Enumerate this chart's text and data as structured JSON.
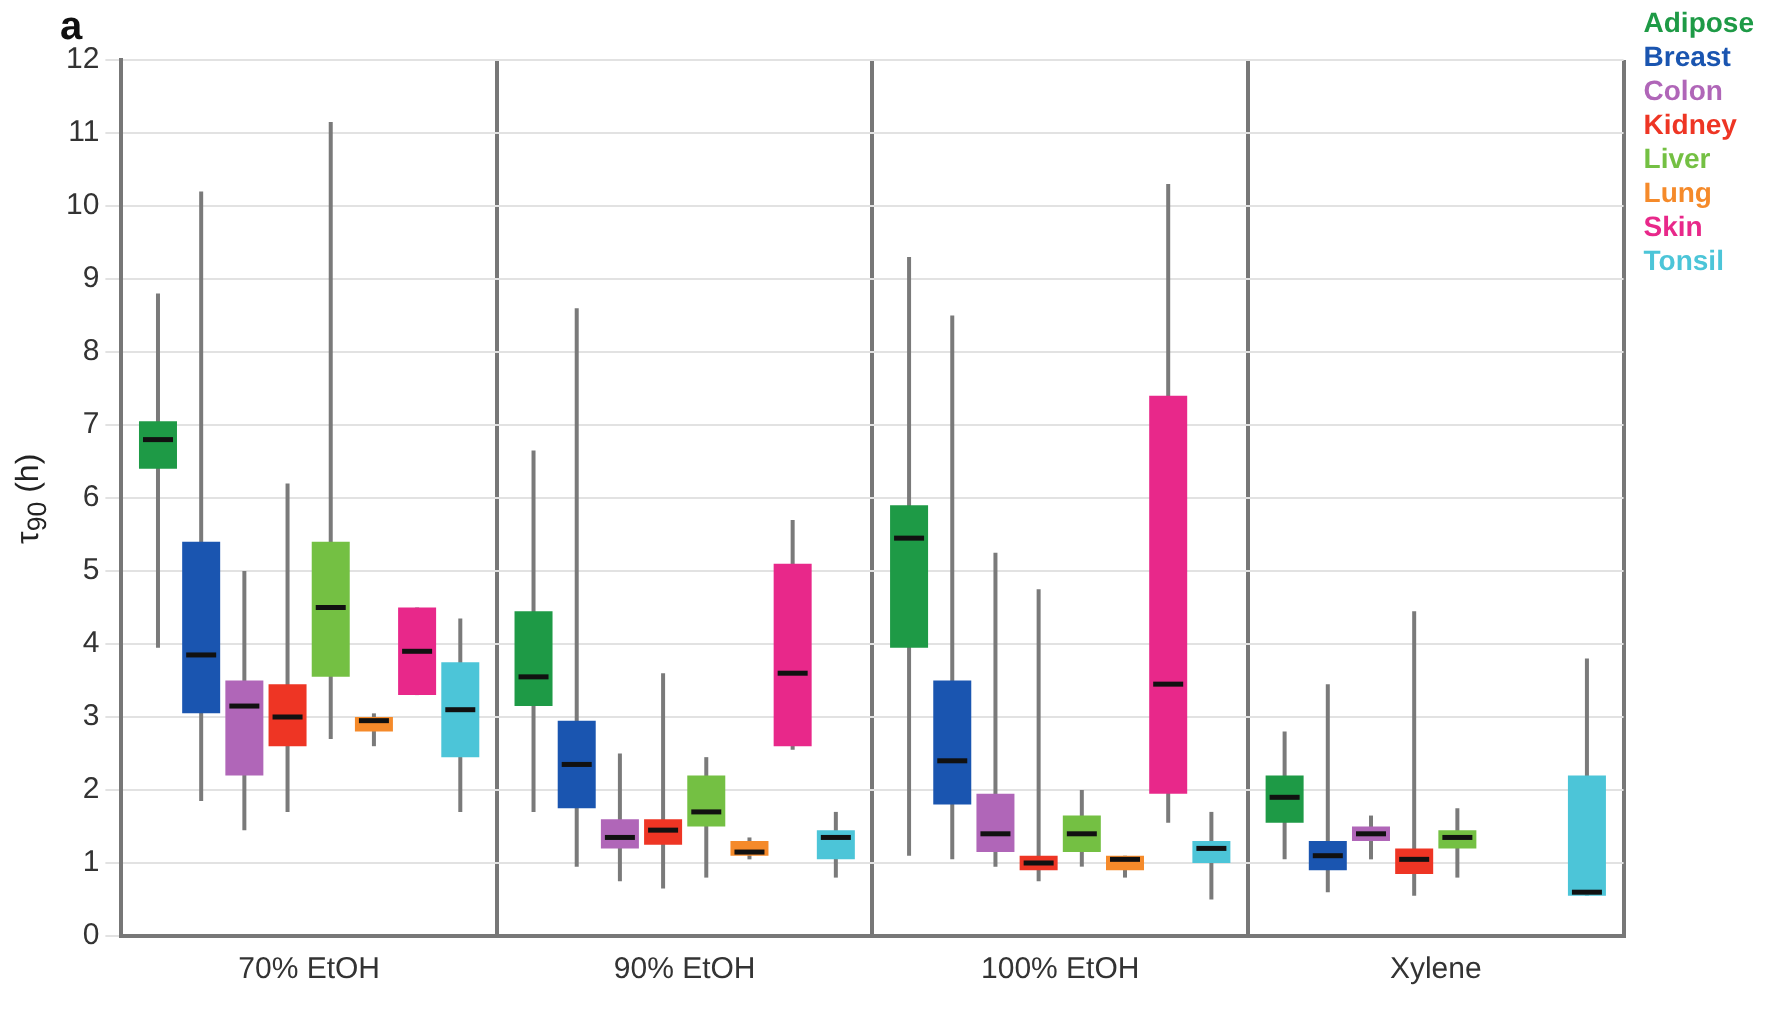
{
  "chart_data": {
    "type": "box",
    "title": "a",
    "ylabel": "τ$_{90}$ (h)",
    "categories": [
      "70% EtOH",
      "90% EtOH",
      "100% EtOH",
      "Xylene"
    ],
    "ylim": [
      0,
      12
    ],
    "yticks": [
      0,
      1,
      2,
      3,
      4,
      5,
      6,
      7,
      8,
      9,
      10,
      11,
      12
    ],
    "grid": true,
    "legend": "top right",
    "series": [
      {
        "name": "Adipose",
        "color": "#1e9a46",
        "boxes": [
          {
            "low": 3.95,
            "q1": 6.4,
            "median": 6.8,
            "q3": 7.05,
            "high": 8.8
          },
          {
            "low": 1.7,
            "q1": 3.15,
            "median": 3.55,
            "q3": 4.45,
            "high": 6.65
          },
          {
            "low": 1.1,
            "q1": 3.95,
            "median": 5.45,
            "q3": 5.9,
            "high": 9.3
          },
          {
            "low": 1.05,
            "q1": 1.55,
            "median": 1.9,
            "q3": 2.2,
            "high": 2.8
          }
        ]
      },
      {
        "name": "Breast",
        "color": "#1a55b0",
        "boxes": [
          {
            "low": 1.85,
            "q1": 3.05,
            "median": 3.85,
            "q3": 5.4,
            "high": 10.2
          },
          {
            "low": 0.95,
            "q1": 1.75,
            "median": 2.35,
            "q3": 2.95,
            "high": 8.6
          },
          {
            "low": 1.05,
            "q1": 1.8,
            "median": 2.4,
            "q3": 3.5,
            "high": 8.5
          },
          {
            "low": 0.6,
            "q1": 0.9,
            "median": 1.1,
            "q3": 1.3,
            "high": 3.45
          }
        ]
      },
      {
        "name": "Colon",
        "color": "#b066b8",
        "boxes": [
          {
            "low": 1.45,
            "q1": 2.2,
            "median": 3.15,
            "q3": 3.5,
            "high": 5.0
          },
          {
            "low": 0.75,
            "q1": 1.2,
            "median": 1.35,
            "q3": 1.6,
            "high": 2.5
          },
          {
            "low": 0.95,
            "q1": 1.15,
            "median": 1.4,
            "q3": 1.95,
            "high": 5.25
          },
          {
            "low": 1.05,
            "q1": 1.3,
            "median": 1.4,
            "q3": 1.5,
            "high": 1.65
          }
        ]
      },
      {
        "name": "Kidney",
        "color": "#ee3524",
        "boxes": [
          {
            "low": 1.7,
            "q1": 2.6,
            "median": 3.0,
            "q3": 3.45,
            "high": 6.2
          },
          {
            "low": 0.65,
            "q1": 1.25,
            "median": 1.45,
            "q3": 1.6,
            "high": 3.6
          },
          {
            "low": 0.75,
            "q1": 0.9,
            "median": 1.0,
            "q3": 1.1,
            "high": 4.75
          },
          {
            "low": 0.55,
            "q1": 0.85,
            "median": 1.05,
            "q3": 1.2,
            "high": 4.45
          }
        ]
      },
      {
        "name": "Liver",
        "color": "#74c043",
        "boxes": [
          {
            "low": 2.7,
            "q1": 3.55,
            "median": 4.5,
            "q3": 5.4,
            "high": 11.15
          },
          {
            "low": 0.8,
            "q1": 1.5,
            "median": 1.7,
            "q3": 2.2,
            "high": 2.45
          },
          {
            "low": 0.95,
            "q1": 1.15,
            "median": 1.4,
            "q3": 1.65,
            "high": 2.0
          },
          {
            "low": 0.8,
            "q1": 1.2,
            "median": 1.35,
            "q3": 1.45,
            "high": 1.75
          }
        ]
      },
      {
        "name": "Lung",
        "color": "#f58a2a",
        "boxes": [
          {
            "low": 2.6,
            "q1": 2.8,
            "median": 2.95,
            "q3": 3.0,
            "high": 3.05
          },
          {
            "low": 1.05,
            "q1": 1.1,
            "median": 1.15,
            "q3": 1.3,
            "high": 1.35
          },
          {
            "low": 0.8,
            "q1": 0.9,
            "median": 1.05,
            "q3": 1.1,
            "high": 1.1
          },
          null
        ]
      },
      {
        "name": "Skin",
        "color": "#e8288a",
        "boxes": [
          {
            "low": 3.3,
            "q1": 3.3,
            "median": 3.9,
            "q3": 4.5,
            "high": 4.5
          },
          {
            "low": 2.55,
            "q1": 2.6,
            "median": 3.6,
            "q3": 5.1,
            "high": 5.7
          },
          {
            "low": 1.55,
            "q1": 1.95,
            "median": 3.45,
            "q3": 7.4,
            "high": 10.3
          },
          null
        ]
      },
      {
        "name": "Tonsil",
        "color": "#4cc5d8",
        "boxes": [
          {
            "low": 1.7,
            "q1": 2.45,
            "median": 3.1,
            "q3": 3.75,
            "high": 4.35
          },
          {
            "low": 0.8,
            "q1": 1.05,
            "median": 1.35,
            "q3": 1.45,
            "high": 1.7
          },
          {
            "low": 0.5,
            "q1": 1.0,
            "median": 1.2,
            "q3": 1.3,
            "high": 1.7
          },
          {
            "low": 0.55,
            "q1": 0.55,
            "median": 0.6,
            "q3": 2.2,
            "high": 3.8
          }
        ]
      }
    ]
  }
}
